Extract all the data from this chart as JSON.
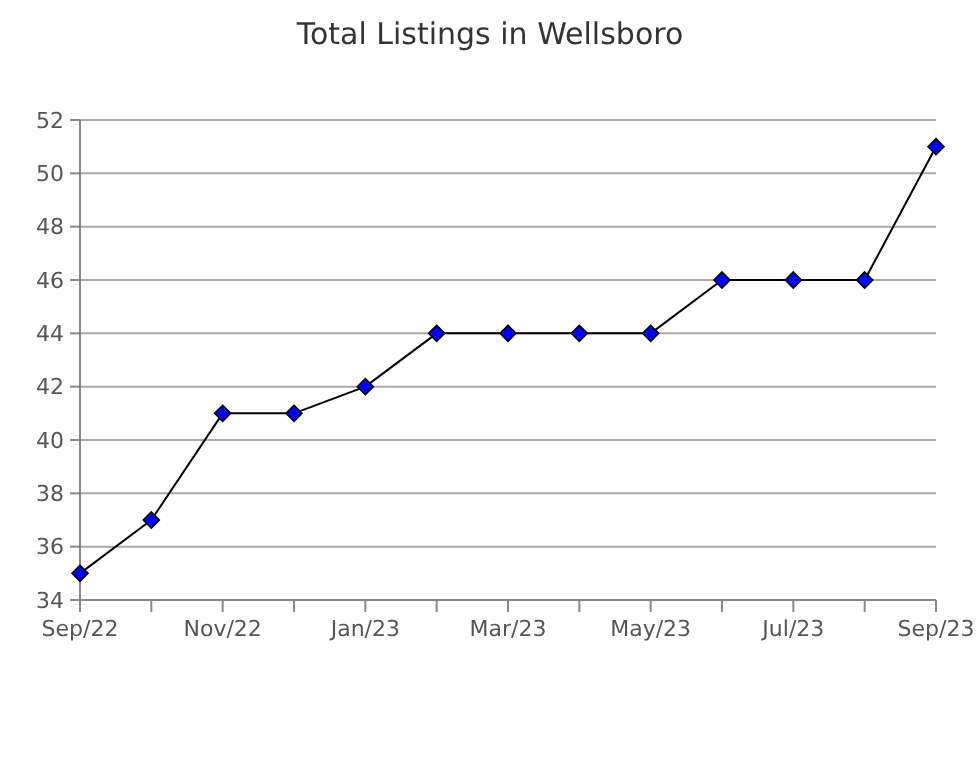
{
  "chart_data": {
    "type": "line",
    "title": "Total Listings in Wellsboro",
    "categories": [
      "Sep/22",
      null,
      "Nov/22",
      null,
      "Jan/23",
      null,
      "Mar/23",
      null,
      "May/23",
      null,
      "Jul/23",
      null,
      "Sep/23"
    ],
    "series": [
      {
        "color": "#0000ff",
        "values": [
          35,
          37,
          41,
          41,
          42,
          44,
          44,
          44,
          44,
          46,
          46,
          46,
          51
        ]
      }
    ],
    "ylim": [
      34,
      52
    ],
    "yticks": [
      34,
      36,
      38,
      40,
      42,
      44,
      46,
      48,
      50,
      52
    ],
    "grid": "y",
    "marker": "diamond",
    "line_style": "solid"
  }
}
